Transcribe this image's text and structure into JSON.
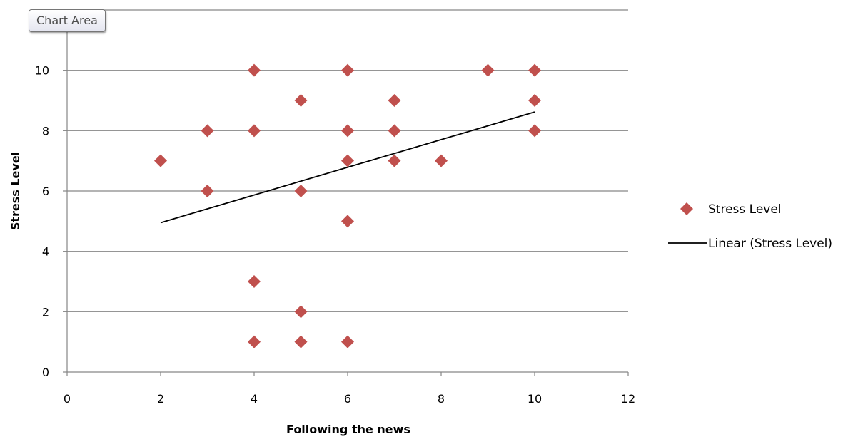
{
  "tooltip": {
    "text": "Chart Area"
  },
  "chart_data": {
    "type": "scatter",
    "xlabel": "Following the news",
    "ylabel": "Stress Level",
    "xlim": [
      0,
      12
    ],
    "ylim": [
      0,
      12
    ],
    "x_ticks": [
      0,
      2,
      4,
      6,
      8,
      10,
      12
    ],
    "y_ticks": [
      0,
      2,
      4,
      6,
      8,
      10
    ],
    "grid": "horizontal",
    "legend_position": "right",
    "series": [
      {
        "name": "Stress Level",
        "marker": "diamond",
        "color": "#c0504d",
        "points": [
          {
            "x": 2,
            "y": 7
          },
          {
            "x": 3,
            "y": 8
          },
          {
            "x": 3,
            "y": 6
          },
          {
            "x": 4,
            "y": 10
          },
          {
            "x": 4,
            "y": 8
          },
          {
            "x": 4,
            "y": 3
          },
          {
            "x": 4,
            "y": 1
          },
          {
            "x": 5,
            "y": 9
          },
          {
            "x": 5,
            "y": 6
          },
          {
            "x": 5,
            "y": 2
          },
          {
            "x": 5,
            "y": 1
          },
          {
            "x": 6,
            "y": 10
          },
          {
            "x": 6,
            "y": 8
          },
          {
            "x": 6,
            "y": 7
          },
          {
            "x": 6,
            "y": 5
          },
          {
            "x": 6,
            "y": 1
          },
          {
            "x": 7,
            "y": 9
          },
          {
            "x": 7,
            "y": 8
          },
          {
            "x": 7,
            "y": 7
          },
          {
            "x": 8,
            "y": 7
          },
          {
            "x": 9,
            "y": 10
          },
          {
            "x": 10,
            "y": 10
          },
          {
            "x": 10,
            "y": 9
          },
          {
            "x": 10,
            "y": 8
          }
        ]
      },
      {
        "name": "Linear (Stress Level)",
        "type": "trendline",
        "color": "#000000",
        "points": [
          {
            "x": 2,
            "y": 4.95
          },
          {
            "x": 10,
            "y": 8.62
          }
        ]
      }
    ]
  }
}
